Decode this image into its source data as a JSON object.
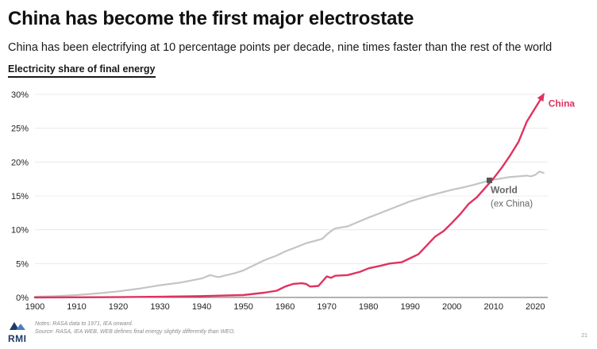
{
  "header": {
    "title": "China has become the first major electrostate",
    "subtitle": "China has been electrifying at 10 percentage points per decade, nine times faster than the rest of the world"
  },
  "chart_data": {
    "type": "line",
    "title": "Electricity share of final energy",
    "xlabel": "",
    "ylabel": "",
    "xlim": [
      1900,
      2023
    ],
    "ylim": [
      0,
      30
    ],
    "x_ticks": [
      1900,
      1910,
      1920,
      1930,
      1940,
      1950,
      1960,
      1970,
      1980,
      1990,
      2000,
      2010,
      2020
    ],
    "y_ticks": [
      0,
      5,
      10,
      15,
      20,
      25,
      30
    ],
    "y_tick_labels": [
      "0%",
      "5%",
      "10%",
      "15%",
      "20%",
      "25%",
      "30%"
    ],
    "grid": "horizontal",
    "series": [
      {
        "name": "World",
        "label_lines": [
          "World",
          "(ex China)"
        ],
        "color": "#c4c4c4",
        "label_color": "#666666",
        "x": [
          1900,
          1905,
          1910,
          1915,
          1920,
          1925,
          1930,
          1935,
          1940,
          1942,
          1944,
          1946,
          1948,
          1950,
          1955,
          1958,
          1960,
          1963,
          1965,
          1968,
          1969,
          1970,
          1971,
          1972,
          1975,
          1980,
          1985,
          1990,
          1995,
          2000,
          2003,
          2005,
          2008,
          2010,
          2012,
          2014,
          2016,
          2018,
          2019,
          2020,
          2021,
          2022
        ],
        "values": [
          0.1,
          0.2,
          0.35,
          0.6,
          0.9,
          1.3,
          1.8,
          2.2,
          2.8,
          3.3,
          3.0,
          3.3,
          3.6,
          4.0,
          5.5,
          6.2,
          6.8,
          7.5,
          8.0,
          8.5,
          8.7,
          9.3,
          9.8,
          10.2,
          10.5,
          11.8,
          13.0,
          14.2,
          15.1,
          15.9,
          16.3,
          16.6,
          17.1,
          17.4,
          17.6,
          17.8,
          17.9,
          18.0,
          17.9,
          18.1,
          18.6,
          18.4
        ]
      },
      {
        "name": "China",
        "color": "#e0325f",
        "label_color": "#e0325f",
        "x": [
          1900,
          1910,
          1920,
          1930,
          1940,
          1950,
          1955,
          1958,
          1960,
          1962,
          1964,
          1965,
          1966,
          1968,
          1970,
          1971,
          1972,
          1975,
          1978,
          1980,
          1983,
          1985,
          1988,
          1990,
          1992,
          1994,
          1996,
          1998,
          2000,
          2002,
          2004,
          2006,
          2008,
          2010,
          2012,
          2014,
          2016,
          2018,
          2020,
          2022
        ],
        "values": [
          0,
          0.02,
          0.05,
          0.1,
          0.2,
          0.35,
          0.7,
          1.0,
          1.6,
          2.0,
          2.1,
          2.0,
          1.6,
          1.7,
          3.1,
          2.9,
          3.2,
          3.3,
          3.8,
          4.3,
          4.7,
          5.0,
          5.2,
          5.8,
          6.4,
          7.7,
          9.0,
          9.8,
          11.0,
          12.3,
          13.8,
          14.8,
          16.2,
          17.6,
          19.2,
          21.0,
          23.0,
          26.0,
          28.0,
          30.0
        ]
      }
    ],
    "annotations": [
      {
        "text": "China",
        "series": "China"
      },
      {
        "text": "World (ex China)",
        "series": "World"
      }
    ],
    "crossover_marker": {
      "x": 2009,
      "y": 17.3
    }
  },
  "footer": {
    "logo_text": "RMI",
    "notes_line1": "Notes: RASA data to 1971, IEA onward.",
    "notes_line2": "Source: RASA, IEA WEB. WEB defines final energy slightly differently than WEO.",
    "page_number": "21"
  }
}
